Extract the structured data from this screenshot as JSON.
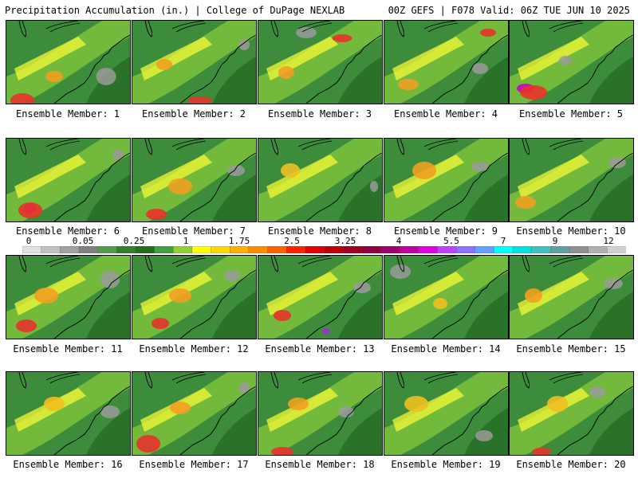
{
  "header": {
    "left": "Precipitation Accumulation (in.) | College of DuPage NEXLAB",
    "right": "00Z GEFS | F078 Valid: 06Z TUE JUN 10 2025"
  },
  "panels": [
    {
      "label": "Ensemble Member: 1",
      "hot": [
        [
          20,
          100,
          30,
          18,
          "#e8332a"
        ],
        [
          60,
          70,
          22,
          14,
          "#f0a020"
        ]
      ],
      "gray": [
        [
          125,
          70,
          25,
          22
        ]
      ]
    },
    {
      "label": "Ensemble Member: 2",
      "hot": [
        [
          85,
          100,
          30,
          10,
          "#e8332a"
        ],
        [
          40,
          55,
          20,
          14,
          "#f0a020"
        ]
      ],
      "gray": [
        [
          140,
          30,
          14,
          14
        ]
      ]
    },
    {
      "label": "Ensemble Member: 3",
      "hot": [
        [
          105,
          22,
          25,
          10,
          "#e8332a"
        ],
        [
          35,
          65,
          20,
          16,
          "#f0a020"
        ]
      ],
      "gray": [
        [
          60,
          15,
          26,
          14
        ]
      ]
    },
    {
      "label": "Ensemble Member: 4",
      "hot": [
        [
          130,
          15,
          20,
          10,
          "#e8332a"
        ],
        [
          30,
          80,
          26,
          14,
          "#f0a020"
        ]
      ],
      "gray": [
        [
          120,
          60,
          20,
          14
        ]
      ]
    },
    {
      "label": "Ensemble Member: 5",
      "hot": [
        [
          20,
          85,
          22,
          12,
          "#cc00cc"
        ],
        [
          30,
          90,
          34,
          18,
          "#e8332a"
        ]
      ],
      "gray": [
        [
          70,
          50,
          16,
          12
        ]
      ]
    },
    {
      "label": "Ensemble Member: 6",
      "hot": [
        [
          30,
          88,
          16,
          12,
          "#cc00cc"
        ],
        [
          30,
          90,
          30,
          20,
          "#e8332a"
        ]
      ],
      "gray": [
        [
          140,
          20,
          14,
          14
        ]
      ]
    },
    {
      "label": "Ensemble Member: 7",
      "hot": [
        [
          30,
          95,
          26,
          14,
          "#e8332a"
        ],
        [
          60,
          60,
          30,
          20,
          "#f0a020"
        ]
      ],
      "gray": [
        [
          130,
          40,
          22,
          14
        ]
      ]
    },
    {
      "label": "Ensemble Member: 8",
      "hot": [
        [
          40,
          40,
          24,
          18,
          "#f0c020"
        ]
      ],
      "gray": [
        [
          145,
          60,
          10,
          14
        ]
      ]
    },
    {
      "label": "Ensemble Member: 9",
      "hot": [
        [
          50,
          40,
          30,
          22,
          "#f0a020"
        ]
      ],
      "gray": [
        [
          120,
          35,
          22,
          12
        ]
      ]
    },
    {
      "label": "Ensemble Member: 10",
      "hot": [
        [
          20,
          80,
          26,
          16,
          "#f0a020"
        ]
      ],
      "gray": [
        [
          135,
          30,
          22,
          14
        ]
      ]
    },
    {
      "label": "Ensemble Member: 11",
      "hot": [
        [
          25,
          88,
          26,
          16,
          "#e8332a"
        ],
        [
          50,
          50,
          30,
          20,
          "#f0a020"
        ]
      ],
      "gray": [
        [
          130,
          30,
          24,
          22
        ]
      ]
    },
    {
      "label": "Ensemble Member: 12",
      "hot": [
        [
          35,
          85,
          22,
          14,
          "#e8332a"
        ],
        [
          60,
          50,
          28,
          18,
          "#f0a020"
        ]
      ],
      "gray": [
        [
          125,
          25,
          20,
          14
        ]
      ]
    },
    {
      "label": "Ensemble Member: 13",
      "hot": [
        [
          30,
          75,
          22,
          14,
          "#e8332a"
        ],
        [
          85,
          95,
          10,
          8,
          "#9933cc"
        ]
      ],
      "gray": [
        [
          130,
          40,
          22,
          14
        ]
      ]
    },
    {
      "label": "Ensemble Member: 14",
      "hot": [
        [
          70,
          60,
          18,
          14,
          "#f0c020"
        ]
      ],
      "gray": [
        [
          20,
          20,
          26,
          18
        ]
      ]
    },
    {
      "label": "Ensemble Member: 15",
      "hot": [
        [
          30,
          50,
          22,
          18,
          "#f0a020"
        ]
      ],
      "gray": [
        [
          130,
          35,
          24,
          14
        ]
      ]
    },
    {
      "label": "Ensemble Member: 16",
      "hot": [
        [
          60,
          40,
          26,
          18,
          "#f0c020"
        ]
      ],
      "gray": [
        [
          130,
          50,
          24,
          16
        ]
      ]
    },
    {
      "label": "Ensemble Member: 17",
      "hot": [
        [
          20,
          90,
          30,
          22,
          "#e8332a"
        ],
        [
          60,
          45,
          26,
          16,
          "#f0a020"
        ]
      ],
      "gray": [
        [
          140,
          20,
          14,
          14
        ]
      ]
    },
    {
      "label": "Ensemble Member: 18",
      "hot": [
        [
          30,
          100,
          28,
          12,
          "#e8332a"
        ],
        [
          50,
          40,
          26,
          16,
          "#f0a020"
        ]
      ],
      "gray": [
        [
          110,
          50,
          20,
          14
        ]
      ]
    },
    {
      "label": "Ensemble Member: 19",
      "hot": [
        [
          40,
          40,
          30,
          20,
          "#f0c020"
        ]
      ],
      "gray": [
        [
          125,
          80,
          22,
          14
        ]
      ]
    },
    {
      "label": "Ensemble Member: 20",
      "hot": [
        [
          40,
          100,
          24,
          10,
          "#e8332a"
        ],
        [
          60,
          40,
          26,
          20,
          "#f0c020"
        ]
      ],
      "gray": [
        [
          110,
          25,
          20,
          14
        ]
      ]
    }
  ],
  "colorbar": {
    "ticks": [
      "0",
      "0.05",
      "0.25",
      "1",
      "1.75",
      "2.5",
      "3.25",
      "4",
      "5.5",
      "7",
      "9",
      "12"
    ],
    "colors": [
      "#e0e0e0",
      "#c0c0c0",
      "#a0a0a0",
      "#808080",
      "#4f9a4f",
      "#2f7f2f",
      "#1f6f1f",
      "#3fa03f",
      "#8fcf2f",
      "#ffff00",
      "#ffd700",
      "#ffb000",
      "#ff8c00",
      "#ff6000",
      "#ff2000",
      "#e00000",
      "#c00000",
      "#a00020",
      "#900040",
      "#a00070",
      "#c000a0",
      "#e000e0",
      "#c040ff",
      "#9070ff",
      "#60a0ff",
      "#00ffff",
      "#00e0e0",
      "#40c0c0",
      "#60a0a0",
      "#909090",
      "#b0b0b0",
      "#d0d0d0"
    ]
  }
}
